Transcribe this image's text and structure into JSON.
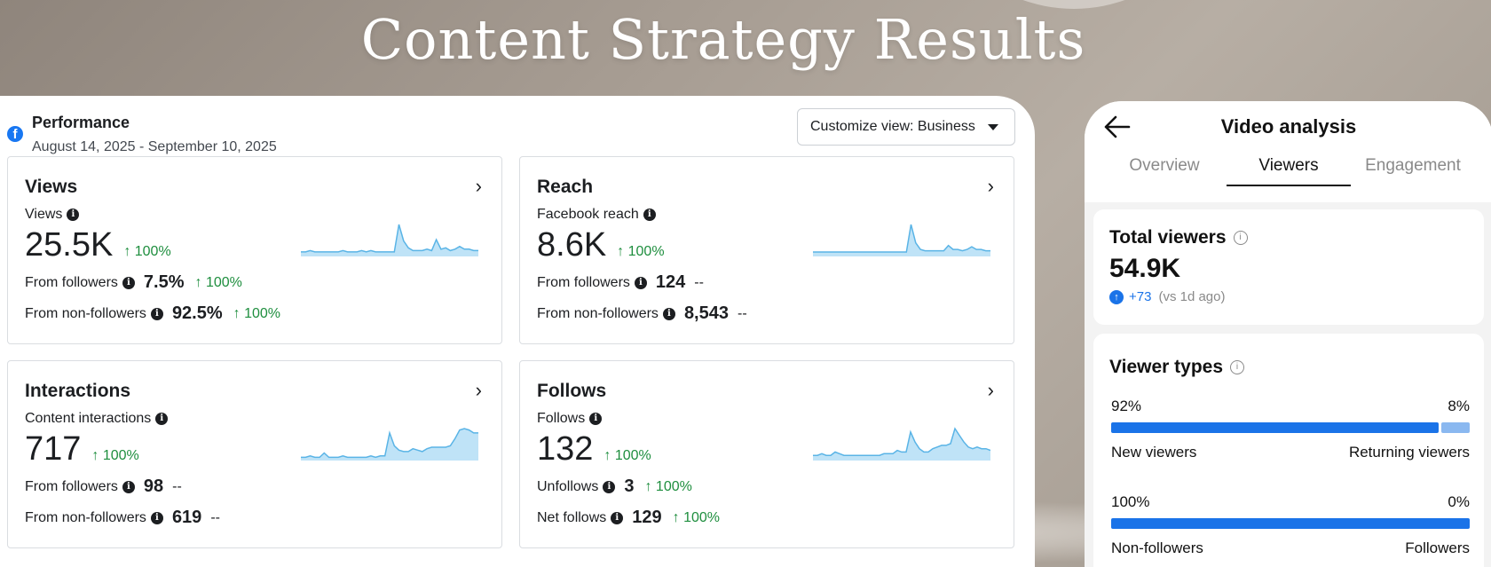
{
  "page_title": "Content Strategy Results",
  "colors": {
    "green": "#1e8e3e",
    "fb_blue": "#1877f2",
    "bar_primary": "#1a73e8",
    "bar_secondary": "#8ab8f0",
    "spark_stroke": "#5ab4e6",
    "spark_fill": "#bfe3f7"
  },
  "facebook": {
    "logo_letter": "f",
    "title": "Performance",
    "date_range": "August 14, 2025 - September 10, 2025",
    "customize_label": "Customize view: Business",
    "info_glyph": "i",
    "chevron": "›",
    "cards": [
      {
        "title": "Views",
        "metric_label": "Views",
        "value": "25.5K",
        "change": "↑ 100%",
        "rows": [
          {
            "label": "From followers",
            "value": "7.5%",
            "change": "↑ 100%"
          },
          {
            "label": "From non-followers",
            "value": "92.5%",
            "change": "↑ 100%"
          }
        ],
        "spark": [
          2,
          2,
          3,
          2,
          2,
          2,
          2,
          2,
          2,
          3,
          2,
          2,
          2,
          3,
          2,
          3,
          2,
          2,
          2,
          2,
          2,
          22,
          10,
          5,
          3,
          3,
          3,
          4,
          3,
          11,
          4,
          5,
          3,
          4,
          6,
          4,
          4,
          3,
          3
        ]
      },
      {
        "title": "Reach",
        "metric_label": "Facebook reach",
        "value": "8.6K",
        "change": "↑ 100%",
        "rows": [
          {
            "label": "From followers",
            "value": "124",
            "change": "--"
          },
          {
            "label": "From non-followers",
            "value": "8,543",
            "change": "--"
          }
        ],
        "spark": [
          2,
          2,
          2,
          2,
          2,
          2,
          2,
          2,
          2,
          2,
          2,
          2,
          2,
          2,
          2,
          2,
          2,
          2,
          2,
          2,
          2,
          23,
          9,
          4,
          3,
          3,
          3,
          3,
          3,
          7,
          4,
          4,
          3,
          4,
          6,
          4,
          4,
          3,
          3
        ]
      },
      {
        "title": "Interactions",
        "metric_label": "Content interactions",
        "value": "717",
        "change": "↑ 100%",
        "rows": [
          {
            "label": "From followers",
            "value": "98",
            "change": "--"
          },
          {
            "label": "From non-followers",
            "value": "619",
            "change": "--"
          }
        ],
        "spark": [
          1,
          1,
          2,
          1,
          1,
          4,
          1,
          1,
          1,
          2,
          1,
          1,
          1,
          1,
          1,
          2,
          1,
          2,
          2,
          18,
          9,
          6,
          5,
          5,
          7,
          6,
          5,
          7,
          8,
          8,
          8,
          8,
          9,
          14,
          20,
          21,
          20,
          18,
          18
        ]
      },
      {
        "title": "Follows",
        "metric_label": "Follows",
        "value": "132",
        "change": "↑ 100%",
        "rows": [
          {
            "label": "Unfollows",
            "value": "3",
            "change": "↑ 100%"
          },
          {
            "label": "Net follows",
            "value": "129",
            "change": "↑ 100%"
          }
        ],
        "spark": [
          2,
          2,
          3,
          2,
          2,
          4,
          3,
          2,
          2,
          2,
          2,
          2,
          2,
          2,
          2,
          2,
          3,
          3,
          3,
          5,
          4,
          4,
          16,
          10,
          6,
          4,
          4,
          6,
          7,
          8,
          8,
          9,
          18,
          14,
          10,
          7,
          6,
          7,
          6,
          6,
          5
        ]
      }
    ]
  },
  "tiktok": {
    "title": "Video analysis",
    "back_icon": "arrow-left-icon",
    "tabs": [
      "Overview",
      "Viewers",
      "Engagement"
    ],
    "active_tab": "Viewers",
    "total_viewers": {
      "title": "Total viewers",
      "value": "54.9K",
      "change": "+73",
      "note": "(vs 1d ago)"
    },
    "viewer_types": {
      "title": "Viewer types",
      "groups": [
        {
          "left_pct": "92%",
          "right_pct": "8%",
          "left_label": "New viewers",
          "right_label": "Returning viewers",
          "left_value": 92,
          "right_value": 8
        },
        {
          "left_pct": "100%",
          "right_pct": "0%",
          "left_label": "Non-followers",
          "right_label": "Followers",
          "left_value": 100,
          "right_value": 0
        }
      ]
    }
  }
}
